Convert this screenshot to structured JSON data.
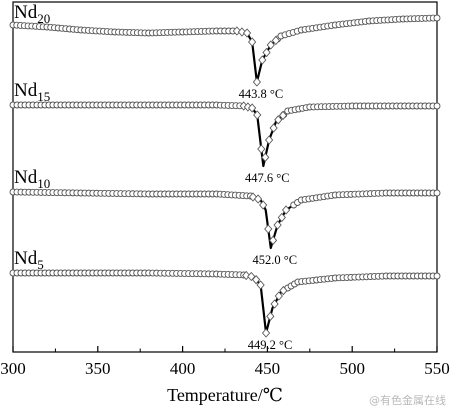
{
  "chart_data": {
    "type": "line",
    "xlabel": "Temperature/℃",
    "xlim": [
      300,
      550
    ],
    "xticks": [
      300,
      350,
      400,
      450,
      500,
      550
    ],
    "xtick_labels": [
      "300",
      "350",
      "400",
      "450",
      "500",
      "550"
    ],
    "y_axis_ticks_shown": false,
    "series": [
      {
        "name_base": "Nd",
        "name_sub": "20",
        "peak_x": 443.8,
        "peak_label": "443.8 °C",
        "points": [
          [
            300,
            25
          ],
          [
            320,
            27
          ],
          [
            340,
            30
          ],
          [
            360,
            32
          ],
          [
            380,
            33
          ],
          [
            400,
            32
          ],
          [
            420,
            31
          ],
          [
            432,
            31
          ],
          [
            438,
            33
          ],
          [
            441,
            42
          ],
          [
            443.8,
            82
          ],
          [
            447,
            60
          ],
          [
            452,
            45
          ],
          [
            458,
            36
          ],
          [
            470,
            30
          ],
          [
            490,
            25
          ],
          [
            510,
            21
          ],
          [
            530,
            19
          ],
          [
            550,
            18
          ]
        ]
      },
      {
        "name_base": "Nd",
        "name_sub": "15",
        "peak_x": 447.6,
        "peak_label": "447.6 °C",
        "points": [
          [
            300,
            105
          ],
          [
            340,
            105
          ],
          [
            380,
            105
          ],
          [
            420,
            105
          ],
          [
            436,
            106
          ],
          [
            441,
            108
          ],
          [
            444,
            115
          ],
          [
            447.6,
            166
          ],
          [
            451,
            140
          ],
          [
            455,
            122
          ],
          [
            462,
            111
          ],
          [
            475,
            107
          ],
          [
            500,
            106
          ],
          [
            550,
            106
          ]
        ]
      },
      {
        "name_base": "Nd",
        "name_sub": "10",
        "peak_x": 452.0,
        "peak_label": "452.0 °C",
        "points": [
          [
            300,
            192
          ],
          [
            340,
            193
          ],
          [
            380,
            194
          ],
          [
            420,
            194
          ],
          [
            440,
            196
          ],
          [
            446,
            200
          ],
          [
            449,
            210
          ],
          [
            452,
            248
          ],
          [
            456,
            225
          ],
          [
            461,
            210
          ],
          [
            470,
            200
          ],
          [
            490,
            195
          ],
          [
            520,
            193
          ],
          [
            550,
            193
          ]
        ]
      },
      {
        "name_base": "Nd",
        "name_sub": "5",
        "peak_x": 449.2,
        "peak_label": "449.2 °C",
        "points": [
          [
            300,
            273
          ],
          [
            340,
            273
          ],
          [
            380,
            273
          ],
          [
            420,
            274
          ],
          [
            436,
            275
          ],
          [
            442,
            277
          ],
          [
            446,
            285
          ],
          [
            449.2,
            333
          ],
          [
            453,
            308
          ],
          [
            458,
            292
          ],
          [
            468,
            282
          ],
          [
            490,
            278
          ],
          [
            520,
            276
          ],
          [
            550,
            276
          ]
        ]
      }
    ],
    "watermark": "@有色金属在线"
  }
}
